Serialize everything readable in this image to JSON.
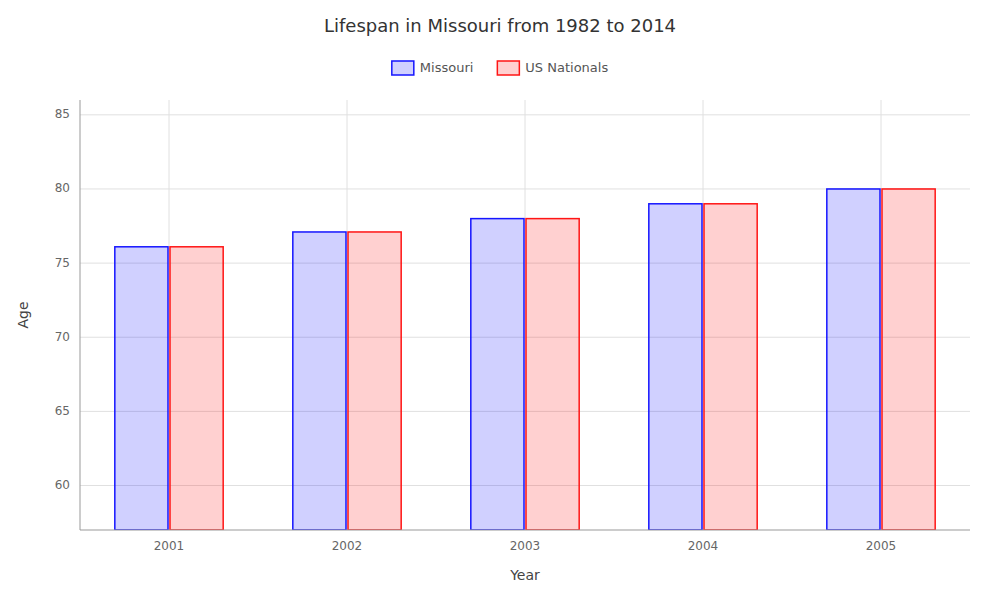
{
  "chart_data": {
    "type": "bar",
    "title": "Lifespan in Missouri from 1982 to 2014",
    "x_label": "Year",
    "y_label": "Age",
    "categories": [
      "2001",
      "2002",
      "2003",
      "2004",
      "2005"
    ],
    "series": [
      {
        "name": "Missouri",
        "color": "#1515ff",
        "values": [
          76.1,
          77.1,
          78.0,
          79.0,
          80.0
        ]
      },
      {
        "name": "US Nationals",
        "color": "#ff1515",
        "values": [
          76.1,
          77.1,
          78.0,
          79.0,
          80.0
        ]
      }
    ],
    "ylim": [
      57,
      86
    ],
    "yticks": [
      60,
      65,
      70,
      75,
      80,
      85
    ],
    "grid": true,
    "legend": "upper center"
  }
}
